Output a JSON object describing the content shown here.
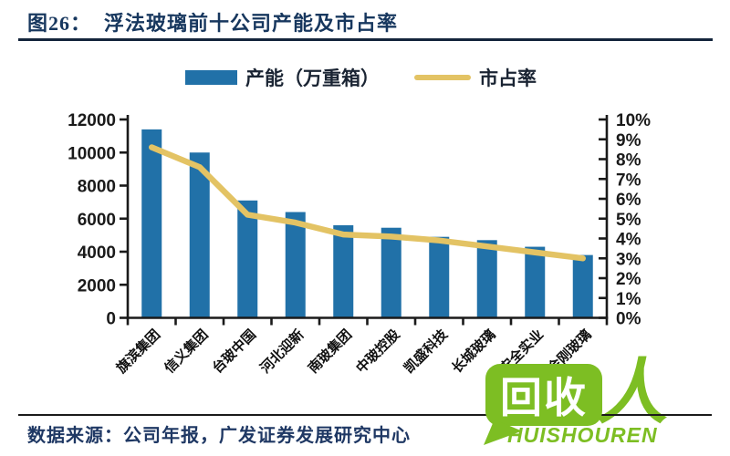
{
  "header": {
    "figure_label": "图26：",
    "title": "浮法玻璃前十公司产能及市占率"
  },
  "legend": {
    "bar_label": "产能（万重箱）",
    "line_label": "市占率"
  },
  "chart_data": {
    "type": "bar+line",
    "title": "浮法玻璃前十公司产能及市占率",
    "categories": [
      "旗滨集团",
      "信义集团",
      "台玻中国",
      "河北迎新",
      "南玻集团",
      "中玻控股",
      "凯盛科技",
      "长城玻璃",
      "安全实业",
      "金刚玻璃"
    ],
    "series": [
      {
        "name": "产能（万重箱）",
        "type": "bar",
        "axis": "left",
        "color": "#2171A8",
        "values": [
          11400,
          10000,
          7100,
          6400,
          5600,
          5450,
          4900,
          4700,
          4300,
          3800
        ]
      },
      {
        "name": "市占率",
        "type": "line",
        "axis": "right",
        "color": "#E3C364",
        "values": [
          8.6,
          7.6,
          5.2,
          4.8,
          4.2,
          4.1,
          3.9,
          3.6,
          3.3,
          3.0
        ]
      }
    ],
    "left_axis": {
      "min": 0,
      "max": 12000,
      "step": 2000,
      "tick_labels": [
        "0",
        "2000",
        "4000",
        "6000",
        "8000",
        "10000",
        "12000"
      ]
    },
    "right_axis": {
      "min": 0,
      "max": 10,
      "step": 1,
      "tick_labels": [
        "0%",
        "1%",
        "2%",
        "3%",
        "4%",
        "5%",
        "6%",
        "7%",
        "8%",
        "9%",
        "10%"
      ]
    },
    "grid": false,
    "legend_position": "top"
  },
  "footer": {
    "source": "数据来源：公司年报，广发证券发展研究中心"
  },
  "watermark": {
    "cn": "回收",
    "ren": "人",
    "en": "HUISHOUREN"
  },
  "colors": {
    "bar": "#2171A8",
    "line": "#E3C364",
    "title_navy": "#17375E",
    "axis_text": "#1a1a1a",
    "watermark_green": "#7DBE23"
  }
}
